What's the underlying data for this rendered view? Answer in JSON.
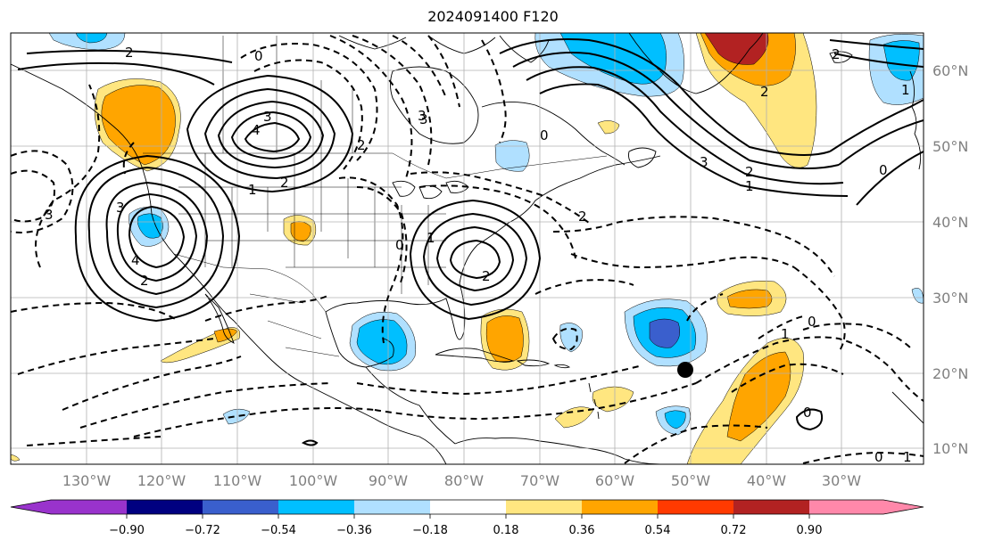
{
  "title": "2024091400 F120",
  "lon_labels": [
    "130°W",
    "120°W",
    "110°W",
    "100°W",
    "90°W",
    "80°W",
    "70°W",
    "60°W",
    "50°W",
    "40°W",
    "30°W"
  ],
  "lat_labels": [
    "60°N",
    "50°N",
    "40°N",
    "30°N",
    "20°N",
    "10°N"
  ],
  "colorbar": {
    "ticks": [
      "−0.90",
      "−0.72",
      "−0.54",
      "−0.36",
      "−0.18",
      "0.18",
      "0.36",
      "0.54",
      "0.72",
      "0.90"
    ],
    "colors": [
      "#9933cc",
      "#000080",
      "#3a5fcd",
      "#00bfff",
      "#b0e0ff",
      "#ffffff",
      "#ffe680",
      "#ffa500",
      "#ff3a00",
      "#b22222",
      "#ff88aa"
    ]
  },
  "contour_labels": [
    "2",
    "0",
    "3",
    "4",
    "3",
    "1",
    "2",
    "4",
    "3",
    "2",
    "2",
    "0",
    "0",
    "1",
    "2",
    "3",
    "0",
    "2",
    "1",
    "2",
    "0",
    "3",
    "1",
    "2",
    "0",
    "3",
    "2",
    "1",
    "0",
    "1"
  ],
  "colors": {
    "positive_strong": "#ffa500",
    "positive_weak": "#ffe680",
    "negative_weak": "#b0e0ff",
    "negative_mid": "#00bfff",
    "negative_strong": "#3a5fcd"
  }
}
